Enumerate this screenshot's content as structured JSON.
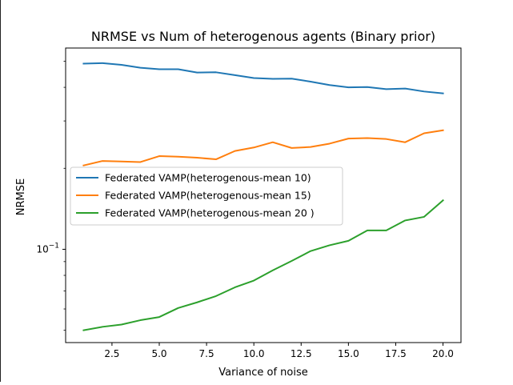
{
  "chart_data": {
    "type": "line",
    "title": "NRMSE vs Num of heterogenous agents (Binary prior)",
    "xlabel": "Variance of noise",
    "ylabel": "NRMSE",
    "yscale": "log",
    "xlim": [
      0.05,
      20.95
    ],
    "ylim": [
      0.045,
      0.56
    ],
    "grid": false,
    "legend_position": "center-left",
    "x_ticks": [
      2.5,
      5.0,
      7.5,
      10.0,
      12.5,
      15.0,
      17.5,
      20.0
    ],
    "x_tick_labels": [
      "2.5",
      "5.0",
      "7.5",
      "10.0",
      "12.5",
      "15.0",
      "17.5",
      "20.0"
    ],
    "y_major_ticks": [
      0.1
    ],
    "y_major_tick_labels": [
      "10−1"
    ],
    "y_minor_ticks": [
      0.05,
      0.06,
      0.07,
      0.08,
      0.09,
      0.2,
      0.3,
      0.4,
      0.5
    ],
    "x": [
      1,
      2,
      3,
      4,
      5,
      6,
      7,
      8,
      9,
      10,
      11,
      12,
      13,
      14,
      15,
      16,
      17,
      18,
      19,
      20
    ],
    "series": [
      {
        "name": "Federated VAMP(heterogenous-mean 10)",
        "color": "#1f77b4",
        "values": [
          0.49,
          0.492,
          0.485,
          0.473,
          0.467,
          0.467,
          0.454,
          0.455,
          0.444,
          0.433,
          0.43,
          0.431,
          0.42,
          0.408,
          0.4,
          0.401,
          0.394,
          0.396,
          0.386,
          0.38
        ]
      },
      {
        "name": "Federated VAMP(heterogenous-mean 15)",
        "color": "#ff7f0e",
        "values": [
          0.205,
          0.213,
          0.212,
          0.211,
          0.222,
          0.221,
          0.219,
          0.216,
          0.232,
          0.239,
          0.25,
          0.238,
          0.24,
          0.247,
          0.258,
          0.259,
          0.257,
          0.25,
          0.27,
          0.277
        ]
      },
      {
        "name": "Federated VAMP(heterogenous-mean 20 )",
        "color": "#2ca02c",
        "values": [
          0.05,
          0.0515,
          0.0525,
          0.0545,
          0.056,
          0.0605,
          0.0635,
          0.067,
          0.0722,
          0.0765,
          0.0835,
          0.0905,
          0.0985,
          0.1035,
          0.1075,
          0.1175,
          0.1175,
          0.128,
          0.132,
          0.152
        ]
      }
    ]
  }
}
